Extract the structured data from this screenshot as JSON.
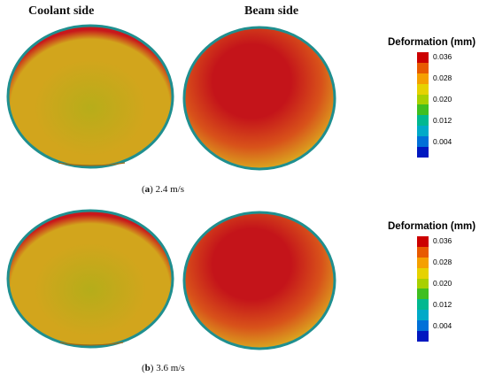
{
  "columns": {
    "coolant": "Coolant side",
    "beam": "Beam side"
  },
  "captions": [
    {
      "letter": "a",
      "text": "2.4 m/s"
    },
    {
      "letter": "b",
      "text": "3.6 m/s"
    }
  ],
  "legend": {
    "title": "Deformation (mm)",
    "ticks": [
      "0.036",
      "0.028",
      "0.020",
      "0.012",
      "0.004"
    ],
    "colors": [
      "#cc0000",
      "#e85a00",
      "#f5a000",
      "#e6d200",
      "#a8d000",
      "#3fbf20",
      "#00b890",
      "#00aac8",
      "#0070d8",
      "#0018c0"
    ]
  },
  "panels": [
    {
      "coolant": {
        "center": "#b7ad1a",
        "mid": "#d2a51c",
        "rim": "#c8181c"
      },
      "beam": {
        "center": "#c4141a",
        "mid": "#d8521a",
        "rim": "#dba41f"
      }
    },
    {
      "coolant": {
        "center": "#b5ad1a",
        "mid": "#d2a51c",
        "rim": "#c8181c"
      },
      "beam": {
        "center": "#c4141a",
        "mid": "#d8521a",
        "rim": "#dba41f"
      }
    }
  ]
}
